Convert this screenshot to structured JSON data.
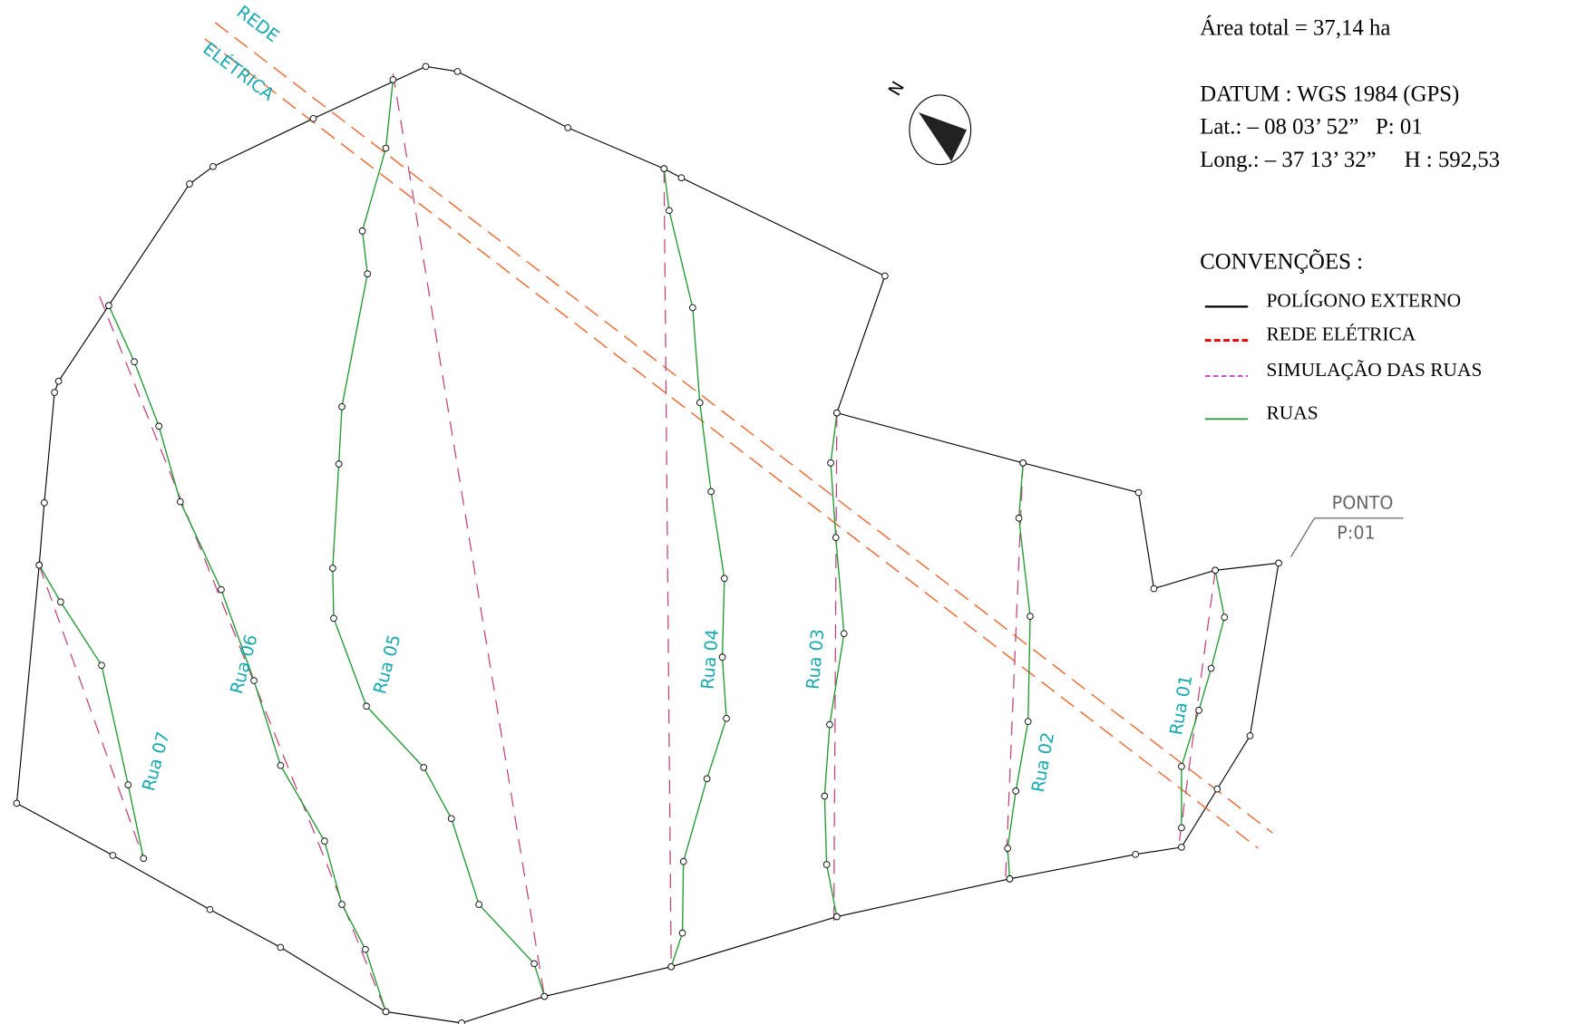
{
  "header": {
    "area": "Área total = 37,14 ha",
    "datum": "DATUM : WGS 1984 (GPS)",
    "lat": "Lat.: – 08 03’ 52”   P: 01",
    "long": "Long.: – 37 13’ 32”     H : 592,53"
  },
  "legend": {
    "title": "CONVENÇÕES :",
    "items": [
      "POLÍGONO EXTERNO",
      "REDE ELÉTRICA",
      "SIMULAÇÃO DAS RUAS",
      "RUAS"
    ]
  },
  "map": {
    "north": "N",
    "power_line": [
      "REDE",
      "ELÉTRICA"
    ],
    "point": [
      "PONTO",
      "P:01"
    ],
    "streets": [
      "Rua 01",
      "Rua 02",
      "Rua 03",
      "Rua 04",
      "Rua 05",
      "Rua 06",
      "Rua 07"
    ]
  }
}
